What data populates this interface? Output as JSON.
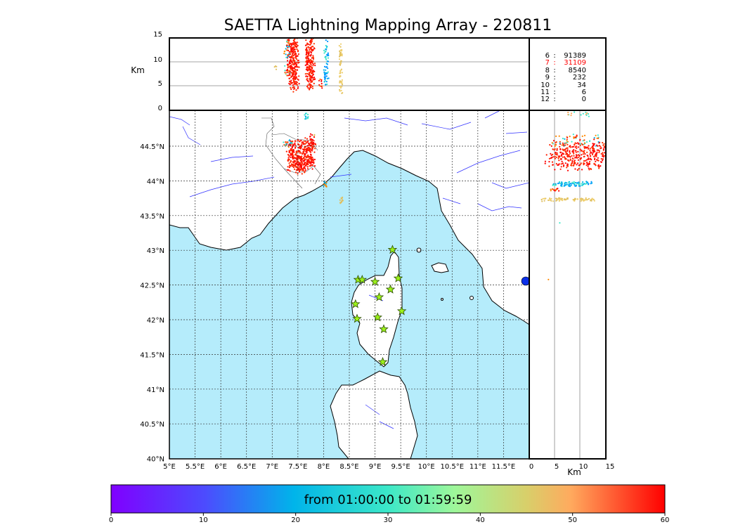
{
  "title": "SAETTA Lightning Mapping Array - 220811",
  "top_panel": {
    "ylabel": "Km",
    "yticks": [
      "15",
      "10",
      "5",
      "0"
    ]
  },
  "side_panel": {
    "xlabel": "Km",
    "xticks": [
      "0",
      "5",
      "10",
      "15"
    ]
  },
  "map": {
    "lon_ticks": [
      "5°E",
      "5.5°E",
      "6°E",
      "6.5°E",
      "7°E",
      "7.5°E",
      "8°E",
      "8.5°E",
      "9°E",
      "9.5°E",
      "10°E",
      "10.5°E",
      "11°E",
      "11.5°E"
    ],
    "lat_ticks": [
      "44.5°N",
      "44°N",
      "43.5°N",
      "43°N",
      "42.5°N",
      "42°N",
      "41.5°N",
      "41°N",
      "40.5°N",
      "40°N"
    ],
    "lon_range": [
      5,
      12
    ],
    "lat_range": [
      40,
      45
    ],
    "sea_color": "#b5ecfb",
    "river_color": "#3030ff",
    "stations": [
      {
        "lon": 9.34,
        "lat": 43.0
      },
      {
        "lon": 8.67,
        "lat": 42.57
      },
      {
        "lon": 8.75,
        "lat": 42.57
      },
      {
        "lon": 9.0,
        "lat": 42.54
      },
      {
        "lon": 9.45,
        "lat": 42.59
      },
      {
        "lon": 9.3,
        "lat": 42.43
      },
      {
        "lon": 9.08,
        "lat": 42.32
      },
      {
        "lon": 8.62,
        "lat": 42.22
      },
      {
        "lon": 9.52,
        "lat": 42.12
      },
      {
        "lon": 9.05,
        "lat": 42.03
      },
      {
        "lon": 8.65,
        "lat": 42.01
      },
      {
        "lon": 9.17,
        "lat": 41.86
      },
      {
        "lon": 9.15,
        "lat": 41.39
      }
    ]
  },
  "stats": [
    {
      "key": "6",
      "value": "91389",
      "color": "#000000"
    },
    {
      "key": "7",
      "value": "31109",
      "color": "#ff0000"
    },
    {
      "key": "8",
      "value": "8540",
      "color": "#000000"
    },
    {
      "key": "9",
      "value": "232",
      "color": "#000000"
    },
    {
      "key": "10",
      "value": "34",
      "color": "#000000"
    },
    {
      "key": "11",
      "value": "6",
      "color": "#000000"
    },
    {
      "key": "12",
      "value": "0",
      "color": "#000000"
    }
  ],
  "colorbar": {
    "label": "from 01:00:00 to 01:59:59",
    "ticks": [
      "0",
      "10",
      "20",
      "30",
      "40",
      "50",
      "60"
    ],
    "range": [
      0,
      60
    ],
    "colormap": "rainbow"
  }
}
